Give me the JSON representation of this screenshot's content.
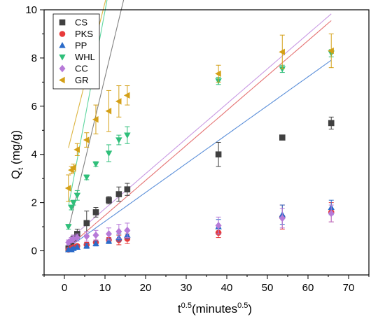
{
  "chart_data": {
    "type": "scatter",
    "xlabel_base": "t",
    "xlabel_sup": "0.5",
    "xlabel_rest": "(minutes",
    "xlabel_sup2": "0.5",
    "xlabel_close": ")",
    "ylabel_base": "Q",
    "ylabel_sub": "t",
    "ylabel_rest": " (mg/g)",
    "xlim": [
      -5,
      75
    ],
    "ylim": [
      -1,
      10
    ],
    "xticks": [
      0,
      10,
      20,
      30,
      40,
      50,
      60,
      70
    ],
    "yticks": [
      0,
      2,
      4,
      6,
      8,
      10
    ],
    "legend_position": "top-left",
    "grid": false,
    "x": [
      1.0,
      1.73,
      2.24,
      3.16,
      5.48,
      7.75,
      10.95,
      13.42,
      15.49,
      37.95,
      53.67,
      65.73
    ],
    "series": [
      {
        "name": "CS",
        "marker": "square",
        "color": "#404040",
        "fit_color": "#808080",
        "values": [
          0.1,
          0.3,
          0.5,
          0.7,
          1.15,
          1.6,
          2.1,
          2.35,
          2.55,
          4.0,
          4.7,
          5.3
        ],
        "errors": [
          0.05,
          0.1,
          0.15,
          0.2,
          0.5,
          0.2,
          0.15,
          0.3,
          0.25,
          0.5,
          0.05,
          0.25
        ],
        "fit": [
          0.2,
          0.7
        ]
      },
      {
        "name": "PKS",
        "marker": "circle",
        "color": "#e83a3a",
        "fit_color": "#e57373",
        "values": [
          0.05,
          0.1,
          0.15,
          0.2,
          0.25,
          0.35,
          0.45,
          0.45,
          0.5,
          0.75,
          1.4,
          1.6
        ],
        "errors": [
          0.05,
          0.05,
          0.05,
          0.05,
          0.1,
          0.1,
          0.1,
          0.2,
          0.2,
          0.2,
          0.5,
          0.4
        ],
        "fit": [
          0.02,
          0.145
        ]
      },
      {
        "name": "PP",
        "marker": "triangle-up",
        "color": "#2b6bc9",
        "fit_color": "#5b8fd9",
        "values": [
          0.05,
          0.05,
          0.1,
          0.15,
          0.2,
          0.3,
          0.4,
          0.55,
          0.65,
          1.0,
          1.5,
          1.8
        ],
        "errors": [
          0.05,
          0.05,
          0.05,
          0.05,
          0.1,
          0.1,
          0.1,
          0.15,
          0.15,
          0.3,
          0.4,
          0.3
        ],
        "fit": [
          0.02,
          0.12
        ]
      },
      {
        "name": "WHL",
        "marker": "triangle-down",
        "color": "#2fbf7a",
        "fit_color": "#5ed6a0",
        "values": [
          1.0,
          1.8,
          2.0,
          2.3,
          3.05,
          3.6,
          4.05,
          4.6,
          4.8,
          7.05,
          7.55,
          8.2
        ],
        "errors": [
          0.1,
          0.1,
          0.1,
          0.2,
          0.1,
          0.1,
          0.35,
          0.2,
          0.35,
          0.15,
          0.15,
          0.15
        ],
        "fit": [
          0.95,
          0.9
        ]
      },
      {
        "name": "CC",
        "marker": "diamond",
        "color": "#b77ad8",
        "fit_color": "#c99ae3",
        "values": [
          0.35,
          0.45,
          0.5,
          0.55,
          0.6,
          0.65,
          0.7,
          0.8,
          0.85,
          1.05,
          1.35,
          1.55
        ],
        "errors": [
          0.1,
          0.1,
          0.15,
          0.15,
          0.2,
          0.2,
          0.25,
          0.3,
          0.3,
          0.35,
          0.4,
          0.35
        ],
        "fit": [
          0.3,
          0.145
        ]
      },
      {
        "name": "GR",
        "marker": "triangle-left",
        "color": "#d4a017",
        "fit_color": "#dcb542",
        "values": [
          2.6,
          3.35,
          3.45,
          4.2,
          4.6,
          5.45,
          5.8,
          6.2,
          6.45,
          7.35,
          8.25,
          8.3
        ],
        "errors": [
          0.55,
          0.15,
          0.15,
          0.25,
          0.3,
          0.6,
          0.85,
          0.65,
          0.4,
          0.35,
          0.7,
          0.7
        ],
        "fit": [
          3.6,
          0.67
        ]
      }
    ]
  }
}
